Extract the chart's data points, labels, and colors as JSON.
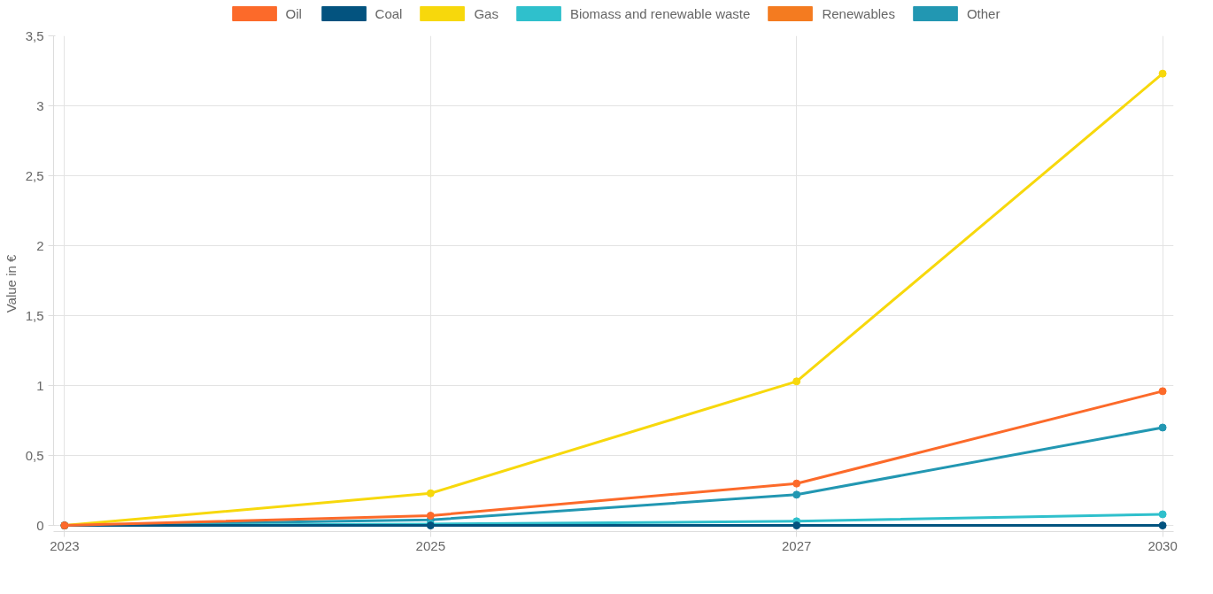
{
  "chart_data": {
    "type": "line",
    "ylabel": "Value in €",
    "categories": [
      "2023",
      "2025",
      "2027",
      "2030"
    ],
    "series": [
      {
        "name": "Oil",
        "color": "#fc6a2a",
        "values": [
          0,
          0.07,
          0.3,
          0.96
        ]
      },
      {
        "name": "Coal",
        "color": "#03537f",
        "values": [
          0,
          0,
          0,
          0
        ]
      },
      {
        "name": "Gas",
        "color": "#f7d80c",
        "values": [
          0,
          0.23,
          1.03,
          3.23
        ]
      },
      {
        "name": "Biomass and renewable waste",
        "color": "#2fc0cc",
        "values": [
          0,
          0.01,
          0.03,
          0.08
        ]
      },
      {
        "name": "Renewables",
        "color": "#f47b20",
        "values": [
          null,
          null,
          null,
          null
        ]
      },
      {
        "name": "Other",
        "color": "#2297b2",
        "values": [
          0,
          0.04,
          0.22,
          0.7
        ]
      }
    ],
    "ylim": [
      0,
      3.5
    ],
    "yticks": [
      0,
      {
        "value": 0.5,
        "label": "0,5"
      },
      1,
      {
        "value": 1.5,
        "label": "1,5"
      },
      2,
      {
        "value": 2.5,
        "label": "2,5"
      },
      3,
      {
        "value": 3.5,
        "label": "3,5"
      }
    ],
    "grid": true,
    "legend": "top",
    "marker": "circle",
    "line_style": "solid"
  }
}
